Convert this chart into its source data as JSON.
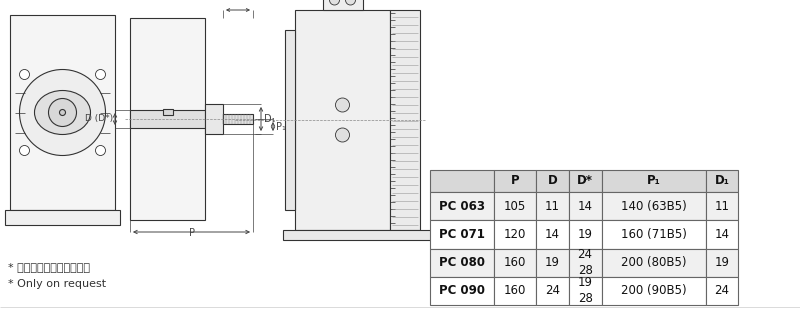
{
  "table_headers": [
    "",
    "P",
    "D",
    "D*",
    "P₁",
    "D₁"
  ],
  "table_rows": [
    [
      "PC 063",
      "105",
      "11",
      "14",
      "140 (63B5)",
      "11"
    ],
    [
      "PC 071",
      "120",
      "14",
      "19",
      "160 (71B5)",
      "14"
    ],
    [
      "PC 080",
      "160",
      "19",
      "24\n28",
      "200 (80B5)",
      "19"
    ],
    [
      "PC 090",
      "160",
      "24",
      "19\n28",
      "200 (90B5)",
      "24"
    ]
  ],
  "footnote_cn": "* 非标产品，订单时请说明",
  "footnote_en": "* Only on request",
  "bg_color": "#ffffff",
  "line_color": "#333333",
  "header_bg": "#d8d8d8",
  "row_bg_alt": "#f0f0f0",
  "row_bg": "#ffffff"
}
